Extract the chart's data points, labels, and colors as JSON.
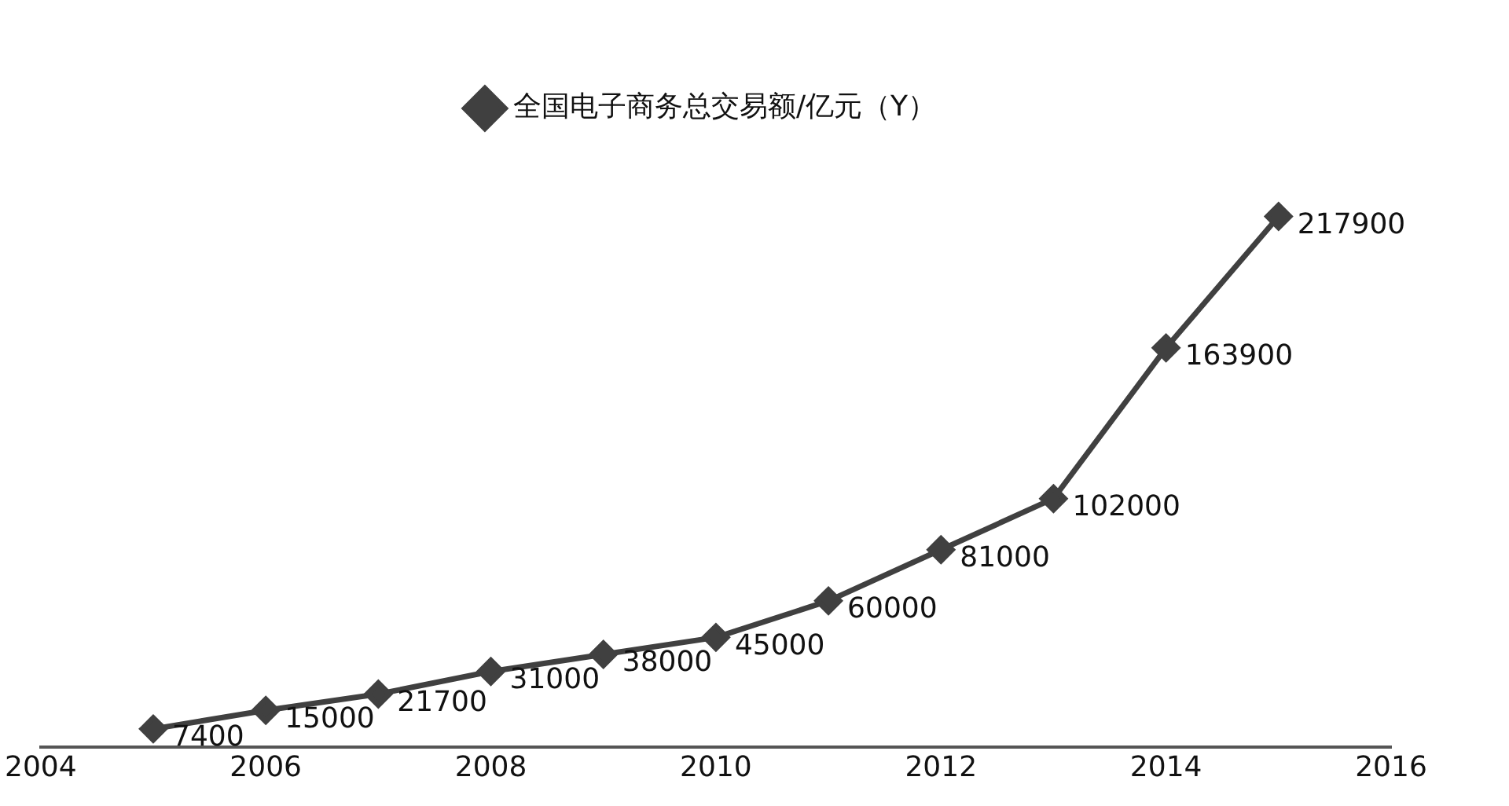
{
  "chart_data": {
    "type": "line",
    "x": [
      2005,
      2006,
      2007,
      2008,
      2009,
      2010,
      2011,
      2012,
      2013,
      2014,
      2015
    ],
    "series": [
      {
        "name": "全国电子商务总交易额/亿元（Y）",
        "color": "#404040",
        "values": [
          7400,
          15000,
          21700,
          31000,
          38000,
          45000,
          60000,
          81000,
          102000,
          163900,
          217900
        ]
      }
    ],
    "xlim": [
      2004,
      2016
    ],
    "xticks": [
      2004,
      2006,
      2008,
      2010,
      2012,
      2014,
      2016
    ],
    "data_labels": true,
    "legend": "top",
    "grid": false,
    "marker": "diamond",
    "line_style": "solid",
    "tick_labels": "x"
  }
}
